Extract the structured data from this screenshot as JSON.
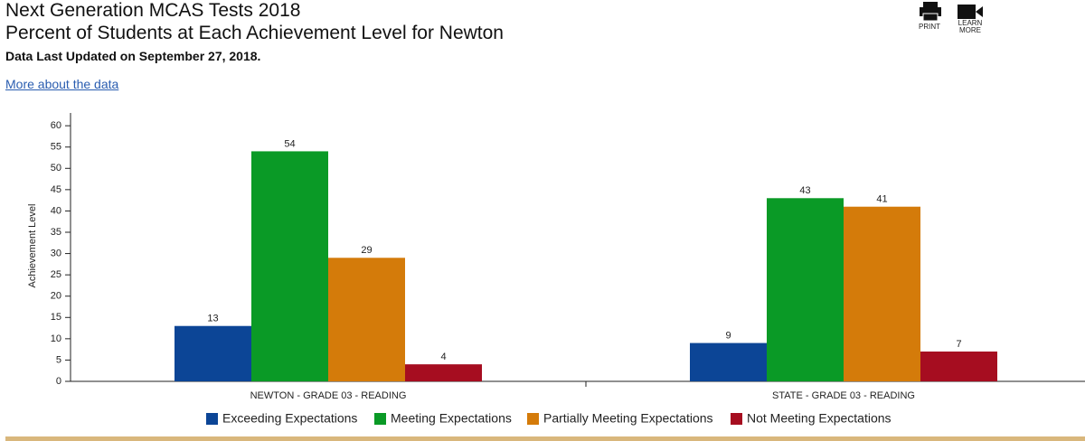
{
  "header": {
    "title": "Next Generation MCAS Tests 2018",
    "subtitle": "Percent of Students at Each Achievement Level for Newton",
    "updated": "Data Last Updated on September 27, 2018.",
    "link": "More about the data",
    "print": "PRINT",
    "learn_more": "LEARN MORE"
  },
  "chart_data": {
    "type": "bar",
    "y_label": "Achievement Level",
    "categories": [
      "NEWTON - GRADE 03 - READING",
      "STATE - GRADE 03 - READING"
    ],
    "series": [
      {
        "name": "Exceeding Expectations",
        "color": "#0c4596",
        "values": [
          13,
          9
        ]
      },
      {
        "name": "Meeting Expectations",
        "color": "#0a9a26",
        "values": [
          54,
          43
        ]
      },
      {
        "name": "Partially Meeting Expectations",
        "color": "#d47b0a",
        "values": [
          29,
          41
        ]
      },
      {
        "name": "Not Meeting Expectations",
        "color": "#a60d20",
        "values": [
          4,
          7
        ]
      }
    ],
    "ylim": [
      0,
      63
    ],
    "yticks": [
      0,
      5,
      10,
      15,
      20,
      25,
      30,
      35,
      40,
      45,
      50,
      55,
      60
    ]
  }
}
